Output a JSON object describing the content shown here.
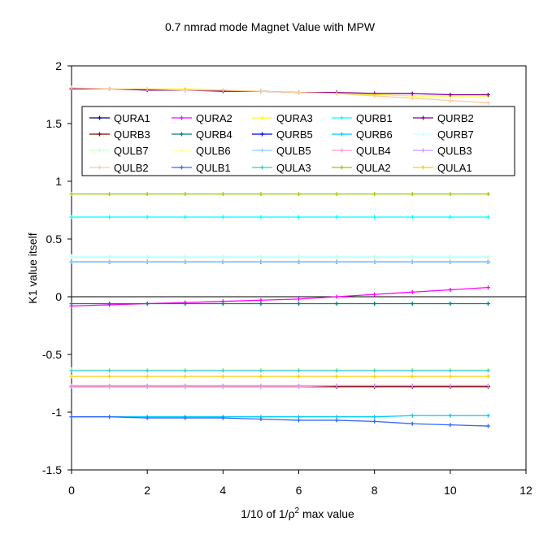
{
  "chart_data": {
    "type": "line",
    "title": "0.7 nmrad mode Magnet Value with MPW",
    "xlabel": "1/10 of 1/ρ",
    "xlabel_sup": "2",
    "xlabel_tail": " max value",
    "ylabel": "K1 value itself",
    "xlim": [
      0,
      12
    ],
    "ylim": [
      -1.5,
      2
    ],
    "xticks": [
      0,
      2,
      4,
      6,
      8,
      10,
      12
    ],
    "xtick_labels": [
      "0",
      "2",
      "4",
      "6",
      "8",
      "10",
      "12"
    ],
    "yticks": [
      2,
      1.5,
      1,
      0.5,
      0,
      -0.5,
      -1,
      -1.5
    ],
    "ytick_labels": [
      "2",
      "1.5",
      "1",
      "0.5",
      "0",
      "-0.5",
      "-1",
      "-1.5"
    ],
    "grid": false,
    "legend_position": "top-inside",
    "x": [
      0,
      1,
      2,
      3,
      4,
      5,
      6,
      7,
      8,
      9,
      10,
      11
    ],
    "series": [
      {
        "name": "QURA1",
        "color": "#000080",
        "values": [
          0.3,
          0.3,
          0.3,
          0.3,
          0.3,
          0.3,
          0.3,
          0.3,
          0.3,
          0.3,
          0.3,
          0.3
        ]
      },
      {
        "name": "QURA2",
        "color": "#ff00ff",
        "values": [
          -0.08,
          -0.07,
          -0.06,
          -0.05,
          -0.04,
          -0.03,
          -0.02,
          0.0,
          0.02,
          0.04,
          0.06,
          0.08
        ]
      },
      {
        "name": "QURA3",
        "color": "#ffff00",
        "values": [
          1.8,
          1.8,
          1.8,
          1.8,
          1.79,
          1.78,
          1.77,
          1.76,
          1.75,
          1.74,
          1.74,
          1.74
        ]
      },
      {
        "name": "QURB1",
        "color": "#00ffff",
        "values": [
          0.69,
          0.69,
          0.69,
          0.69,
          0.69,
          0.69,
          0.69,
          0.69,
          0.69,
          0.69,
          0.69,
          0.69
        ]
      },
      {
        "name": "QURB2",
        "color": "#800080",
        "values": [
          1.8,
          1.8,
          1.79,
          1.79,
          1.78,
          1.78,
          1.77,
          1.77,
          1.76,
          1.76,
          1.75,
          1.75
        ]
      },
      {
        "name": "QURB3",
        "color": "#800000",
        "values": [
          -0.78,
          -0.78,
          -0.78,
          -0.78,
          -0.78,
          -0.78,
          -0.78,
          -0.78,
          -0.78,
          -0.78,
          -0.78,
          -0.78
        ]
      },
      {
        "name": "QURB4",
        "color": "#008080",
        "values": [
          -0.06,
          -0.06,
          -0.06,
          -0.06,
          -0.06,
          -0.06,
          -0.06,
          -0.06,
          -0.06,
          -0.06,
          -0.06,
          -0.06
        ]
      },
      {
        "name": "QURB5",
        "color": "#0000ff",
        "values": [
          0.3,
          0.3,
          0.3,
          0.3,
          0.3,
          0.3,
          0.3,
          0.3,
          0.3,
          0.3,
          0.3,
          0.3
        ]
      },
      {
        "name": "QURB6",
        "color": "#00ccff",
        "values": [
          -1.04,
          -1.04,
          -1.04,
          -1.04,
          -1.04,
          -1.04,
          -1.04,
          -1.04,
          -1.04,
          -1.03,
          -1.03,
          -1.03
        ]
      },
      {
        "name": "QURB7",
        "color": "#ccffff",
        "values": [
          0.35,
          0.35,
          0.35,
          0.35,
          0.35,
          0.35,
          0.35,
          0.35,
          0.35,
          0.35,
          0.35,
          0.35
        ]
      },
      {
        "name": "QULB7",
        "color": "#ccffcc",
        "values": [
          0.34,
          0.34,
          0.34,
          0.34,
          0.34,
          0.34,
          0.34,
          0.34,
          0.34,
          0.34,
          0.34,
          0.34
        ]
      },
      {
        "name": "QULB6",
        "color": "#ffff99",
        "values": [
          -0.63,
          -0.63,
          -0.63,
          -0.63,
          -0.63,
          -0.63,
          -0.63,
          -0.63,
          -0.63,
          -0.63,
          -0.63,
          -0.63
        ]
      },
      {
        "name": "QULB5",
        "color": "#99ccff",
        "values": [
          0.3,
          0.3,
          0.3,
          0.3,
          0.3,
          0.3,
          0.3,
          0.3,
          0.3,
          0.3,
          0.3,
          0.3
        ]
      },
      {
        "name": "QULB4",
        "color": "#ff99cc",
        "values": [
          -0.78,
          -0.78,
          -0.78,
          -0.78,
          -0.78,
          -0.78,
          -0.78,
          -0.77,
          -0.77,
          -0.77,
          -0.77,
          -0.77
        ]
      },
      {
        "name": "QULB3",
        "color": "#cc99ff",
        "values": [
          -0.77,
          -0.77,
          -0.77,
          -0.77,
          -0.77,
          -0.77,
          -0.77,
          -0.77,
          -0.77,
          -0.77,
          -0.77,
          -0.77
        ]
      },
      {
        "name": "QULB2",
        "color": "#ffcc99",
        "values": [
          1.81,
          1.8,
          1.8,
          1.79,
          1.79,
          1.78,
          1.77,
          1.76,
          1.74,
          1.72,
          1.7,
          1.68
        ]
      },
      {
        "name": "QULB1",
        "color": "#3366ff",
        "values": [
          -1.04,
          -1.04,
          -1.05,
          -1.05,
          -1.05,
          -1.06,
          -1.07,
          -1.07,
          -1.08,
          -1.1,
          -1.11,
          -1.12
        ]
      },
      {
        "name": "QULA3",
        "color": "#33cccc",
        "values": [
          -0.64,
          -0.64,
          -0.64,
          -0.64,
          -0.64,
          -0.64,
          -0.64,
          -0.64,
          -0.64,
          -0.64,
          -0.64,
          -0.64
        ]
      },
      {
        "name": "QULA2",
        "color": "#99cc00",
        "values": [
          0.89,
          0.89,
          0.89,
          0.89,
          0.89,
          0.89,
          0.89,
          0.89,
          0.89,
          0.89,
          0.89,
          0.89
        ]
      },
      {
        "name": "QULA1",
        "color": "#ffcc00",
        "values": [
          -0.69,
          -0.69,
          -0.69,
          -0.69,
          -0.69,
          -0.69,
          -0.69,
          -0.69,
          -0.69,
          -0.69,
          -0.69,
          -0.69
        ]
      }
    ]
  }
}
